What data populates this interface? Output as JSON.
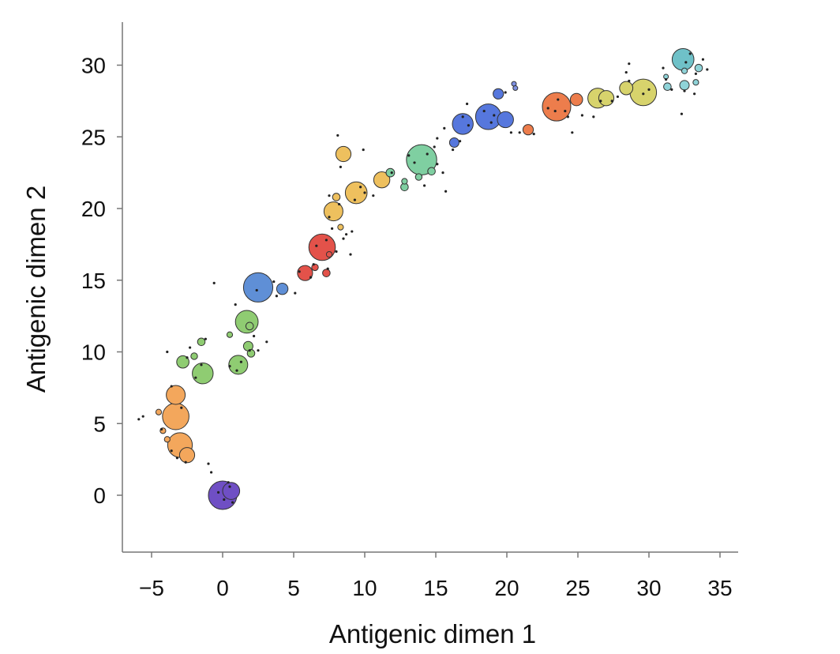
{
  "chart_data": {
    "type": "scatter",
    "title": "",
    "xlabel": "Antigenic dimen 1",
    "ylabel": "Antigenic dimen 2",
    "xlim": [
      -7,
      36
    ],
    "ylim": [
      -4,
      33
    ],
    "xticks": [
      -5,
      0,
      5,
      10,
      15,
      20,
      25,
      30,
      35
    ],
    "xtick_labels": [
      "−5",
      "0",
      "5",
      "10",
      "15",
      "20",
      "25",
      "30",
      "35"
    ],
    "yticks": [
      0,
      5,
      10,
      15,
      20,
      25,
      30
    ],
    "ytick_labels": [
      "0",
      "5",
      "10",
      "15",
      "20",
      "25",
      "30"
    ],
    "grid": false,
    "legend": "none",
    "marker_note": "circle size proportional to cluster size; small dots are individual strains",
    "colors": {
      "purple": "#6f4fc4",
      "orange": "#f3a75c",
      "green": "#8fcc72",
      "blue": "#5f8fd6",
      "red": "#e3524a",
      "yellow": "#eec05e",
      "mint": "#7fcfa1",
      "royal": "#5677dd",
      "periwinkle": "#7d8fe0",
      "coral": "#ed7d4c",
      "olive": "#d7d36c",
      "teal": "#6fc1c8",
      "cyan": "#8fd3d8",
      "outline": "#333333",
      "dot": "#222222",
      "axis": "#777777"
    },
    "clusters": [
      {
        "x": 0.0,
        "y": 0.0,
        "size": 3.0,
        "color": "purple"
      },
      {
        "x": 0.6,
        "y": 0.3,
        "size": 1.8,
        "color": "purple"
      },
      {
        "x": -3.3,
        "y": 5.5,
        "size": 2.8,
        "color": "orange"
      },
      {
        "x": -3.0,
        "y": 3.5,
        "size": 2.6,
        "color": "orange"
      },
      {
        "x": -3.3,
        "y": 7.0,
        "size": 2.0,
        "color": "orange"
      },
      {
        "x": -2.5,
        "y": 2.8,
        "size": 1.6,
        "color": "orange"
      },
      {
        "x": -4.2,
        "y": 4.5,
        "size": 0.6,
        "color": "orange"
      },
      {
        "x": -3.9,
        "y": 3.9,
        "size": 0.6,
        "color": "orange"
      },
      {
        "x": -4.5,
        "y": 5.8,
        "size": 0.6,
        "color": "orange"
      },
      {
        "x": -1.4,
        "y": 8.5,
        "size": 2.2,
        "color": "green"
      },
      {
        "x": -2.8,
        "y": 9.3,
        "size": 1.3,
        "color": "green"
      },
      {
        "x": 1.1,
        "y": 9.1,
        "size": 2.0,
        "color": "green"
      },
      {
        "x": 1.7,
        "y": 12.1,
        "size": 2.4,
        "color": "green"
      },
      {
        "x": 1.8,
        "y": 10.4,
        "size": 1.0,
        "color": "green"
      },
      {
        "x": 2.0,
        "y": 9.9,
        "size": 0.8,
        "color": "green"
      },
      {
        "x": 1.9,
        "y": 11.8,
        "size": 0.8,
        "color": "green"
      },
      {
        "x": -1.5,
        "y": 10.7,
        "size": 0.8,
        "color": "green"
      },
      {
        "x": -2.0,
        "y": 9.7,
        "size": 0.7,
        "color": "green"
      },
      {
        "x": 0.5,
        "y": 11.2,
        "size": 0.6,
        "color": "green"
      },
      {
        "x": 2.5,
        "y": 14.5,
        "size": 3.1,
        "color": "blue"
      },
      {
        "x": 4.2,
        "y": 14.4,
        "size": 1.2,
        "color": "blue"
      },
      {
        "x": 7.0,
        "y": 17.3,
        "size": 2.8,
        "color": "red"
      },
      {
        "x": 5.8,
        "y": 15.5,
        "size": 1.6,
        "color": "red"
      },
      {
        "x": 7.3,
        "y": 15.5,
        "size": 0.8,
        "color": "red"
      },
      {
        "x": 6.5,
        "y": 15.9,
        "size": 0.7,
        "color": "red"
      },
      {
        "x": 7.5,
        "y": 16.8,
        "size": 0.6,
        "color": "red"
      },
      {
        "x": 9.4,
        "y": 21.1,
        "size": 2.3,
        "color": "yellow"
      },
      {
        "x": 7.8,
        "y": 19.8,
        "size": 2.0,
        "color": "yellow"
      },
      {
        "x": 8.5,
        "y": 23.8,
        "size": 1.6,
        "color": "yellow"
      },
      {
        "x": 11.2,
        "y": 22.0,
        "size": 1.7,
        "color": "yellow"
      },
      {
        "x": 8.0,
        "y": 20.8,
        "size": 0.8,
        "color": "yellow"
      },
      {
        "x": 8.3,
        "y": 18.7,
        "size": 0.6,
        "color": "yellow"
      },
      {
        "x": 14.0,
        "y": 23.4,
        "size": 3.2,
        "color": "mint"
      },
      {
        "x": 11.8,
        "y": 22.5,
        "size": 0.9,
        "color": "mint"
      },
      {
        "x": 12.8,
        "y": 21.5,
        "size": 0.8,
        "color": "mint"
      },
      {
        "x": 12.8,
        "y": 21.9,
        "size": 0.6,
        "color": "mint"
      },
      {
        "x": 14.7,
        "y": 22.6,
        "size": 0.8,
        "color": "mint"
      },
      {
        "x": 13.8,
        "y": 22.2,
        "size": 0.7,
        "color": "mint"
      },
      {
        "x": 16.9,
        "y": 25.9,
        "size": 2.2,
        "color": "royal"
      },
      {
        "x": 18.7,
        "y": 26.4,
        "size": 2.7,
        "color": "royal"
      },
      {
        "x": 19.9,
        "y": 26.2,
        "size": 1.7,
        "color": "royal"
      },
      {
        "x": 16.3,
        "y": 24.6,
        "size": 1.0,
        "color": "royal"
      },
      {
        "x": 19.4,
        "y": 28.0,
        "size": 1.1,
        "color": "royal"
      },
      {
        "x": 20.5,
        "y": 28.7,
        "size": 0.5,
        "color": "periwinkle"
      },
      {
        "x": 20.6,
        "y": 28.4,
        "size": 0.5,
        "color": "periwinkle"
      },
      {
        "x": 23.5,
        "y": 27.1,
        "size": 3.0,
        "color": "coral"
      },
      {
        "x": 24.9,
        "y": 27.6,
        "size": 1.3,
        "color": "coral"
      },
      {
        "x": 21.5,
        "y": 25.5,
        "size": 1.1,
        "color": "coral"
      },
      {
        "x": 26.4,
        "y": 27.7,
        "size": 2.1,
        "color": "olive"
      },
      {
        "x": 27.0,
        "y": 27.7,
        "size": 1.6,
        "color": "olive"
      },
      {
        "x": 29.6,
        "y": 28.1,
        "size": 2.8,
        "color": "olive"
      },
      {
        "x": 28.4,
        "y": 28.4,
        "size": 1.4,
        "color": "olive"
      },
      {
        "x": 32.4,
        "y": 30.4,
        "size": 2.3,
        "color": "teal"
      },
      {
        "x": 32.5,
        "y": 28.6,
        "size": 1.0,
        "color": "cyan"
      },
      {
        "x": 33.5,
        "y": 29.8,
        "size": 0.8,
        "color": "cyan"
      },
      {
        "x": 31.3,
        "y": 28.5,
        "size": 0.8,
        "color": "cyan"
      },
      {
        "x": 32.5,
        "y": 29.6,
        "size": 0.6,
        "color": "cyan"
      },
      {
        "x": 31.2,
        "y": 29.2,
        "size": 0.5,
        "color": "cyan"
      },
      {
        "x": 33.3,
        "y": 28.8,
        "size": 0.6,
        "color": "cyan"
      }
    ],
    "strains": [
      [
        -5.9,
        5.3
      ],
      [
        -5.6,
        5.5
      ],
      [
        -3.9,
        10.0
      ],
      [
        -1.2,
        10.9
      ],
      [
        -2.3,
        10.3
      ],
      [
        0.9,
        13.3
      ],
      [
        -0.6,
        14.8
      ],
      [
        1.0,
        8.7
      ],
      [
        0.5,
        9.0
      ],
      [
        2.5,
        10.1
      ],
      [
        3.1,
        10.7
      ],
      [
        -1.0,
        2.2
      ],
      [
        -0.8,
        1.6
      ],
      [
        0.4,
        0.9
      ],
      [
        0.1,
        -0.3
      ],
      [
        -0.3,
        0.2
      ],
      [
        0.5,
        0.6
      ],
      [
        0.7,
        -0.5
      ],
      [
        -2.9,
        6.1
      ],
      [
        -3.6,
        7.6
      ],
      [
        -3.6,
        3.1
      ],
      [
        -2.6,
        2.3
      ],
      [
        -3.2,
        2.6
      ],
      [
        -4.3,
        4.6
      ],
      [
        -1.5,
        9.1
      ],
      [
        -1.9,
        8.2
      ],
      [
        -2.5,
        9.6
      ],
      [
        1.3,
        9.3
      ],
      [
        1.9,
        10.1
      ],
      [
        2.2,
        11.1
      ],
      [
        3.6,
        14.9
      ],
      [
        2.4,
        14.3
      ],
      [
        3.8,
        13.9
      ],
      [
        5.1,
        14.1
      ],
      [
        5.4,
        15.6
      ],
      [
        6.2,
        15.2
      ],
      [
        6.4,
        16.1
      ],
      [
        7.4,
        15.8
      ],
      [
        6.6,
        17.4
      ],
      [
        7.3,
        17.8
      ],
      [
        8.0,
        17.0
      ],
      [
        8.7,
        18.2
      ],
      [
        9.1,
        18.4
      ],
      [
        8.5,
        17.9
      ],
      [
        7.7,
        18.6
      ],
      [
        9.0,
        16.8
      ],
      [
        7.5,
        19.4
      ],
      [
        8.2,
        20.3
      ],
      [
        7.5,
        20.9
      ],
      [
        8.3,
        22.9
      ],
      [
        8.1,
        25.1
      ],
      [
        9.9,
        24.1
      ],
      [
        9.7,
        21.5
      ],
      [
        10.0,
        21.1
      ],
      [
        9.3,
        20.6
      ],
      [
        10.6,
        20.9
      ],
      [
        11.9,
        22.5
      ],
      [
        13.1,
        23.7
      ],
      [
        13.5,
        23.2
      ],
      [
        14.4,
        23.8
      ],
      [
        14.9,
        24.3
      ],
      [
        15.1,
        23.1
      ],
      [
        14.2,
        21.6
      ],
      [
        15.5,
        22.5
      ],
      [
        15.7,
        21.2
      ],
      [
        15.1,
        24.9
      ],
      [
        15.6,
        25.6
      ],
      [
        16.2,
        24.1
      ],
      [
        16.7,
        24.7
      ],
      [
        17.3,
        25.8
      ],
      [
        17.2,
        27.3
      ],
      [
        16.9,
        26.4
      ],
      [
        18.4,
        26.8
      ],
      [
        19.1,
        26.5
      ],
      [
        18.9,
        26.0
      ],
      [
        19.9,
        28.1
      ],
      [
        20.3,
        25.3
      ],
      [
        20.9,
        25.3
      ],
      [
        21.9,
        25.2
      ],
      [
        22.9,
        27.0
      ],
      [
        23.4,
        26.8
      ],
      [
        23.6,
        27.6
      ],
      [
        24.1,
        26.8
      ],
      [
        24.6,
        25.3
      ],
      [
        24.3,
        26.4
      ],
      [
        25.3,
        26.5
      ],
      [
        26.1,
        26.4
      ],
      [
        26.6,
        27.5
      ],
      [
        27.4,
        27.5
      ],
      [
        27.8,
        27.8
      ],
      [
        28.6,
        28.9
      ],
      [
        28.4,
        29.5
      ],
      [
        28.6,
        30.1
      ],
      [
        29.6,
        28.0
      ],
      [
        30.0,
        28.3
      ],
      [
        31.0,
        29.8
      ],
      [
        31.2,
        29.0
      ],
      [
        31.6,
        28.3
      ],
      [
        32.3,
        26.6
      ],
      [
        32.5,
        28.2
      ],
      [
        32.6,
        30.2
      ],
      [
        32.9,
        30.8
      ],
      [
        33.2,
        28.0
      ],
      [
        33.3,
        29.4
      ],
      [
        33.8,
        30.4
      ],
      [
        34.1,
        29.7
      ]
    ]
  }
}
